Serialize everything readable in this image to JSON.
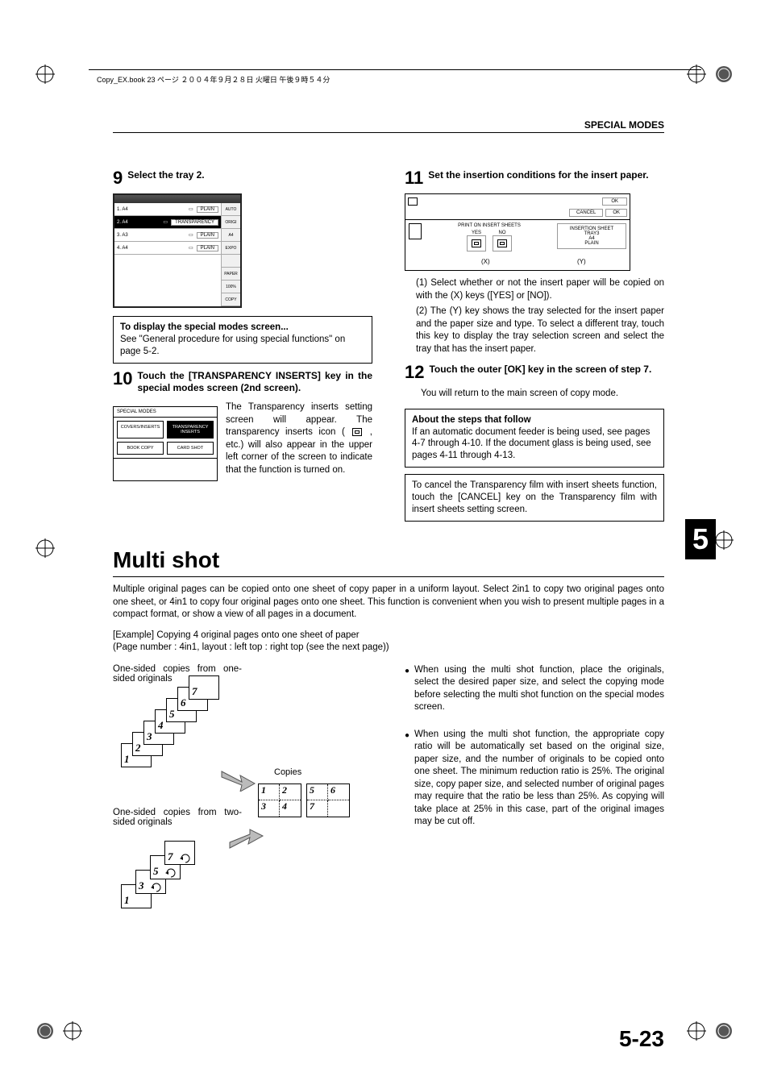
{
  "header": {
    "crop_text": "Copy_EX.book 23 ページ ２００４年９月２８日 火曜日 午後９時５４分",
    "section": "SPECIAL MODES"
  },
  "left": {
    "step9": {
      "num": "9",
      "text": "Select the tray 2."
    },
    "tray": {
      "rows": [
        {
          "n": "1.",
          "size": "A4",
          "type": "PLAIN",
          "sel": false
        },
        {
          "n": "2.",
          "size": "A4",
          "type": "TRANSPARENCY",
          "sel": true
        },
        {
          "n": "3.",
          "size": "A3",
          "type": "PLAIN",
          "sel": false
        },
        {
          "n": "4.",
          "size": "A4",
          "type": "PLAIN",
          "sel": false
        }
      ],
      "side": [
        "AUTO",
        "ORIGI",
        "A4",
        "EXPO",
        "",
        "PAPER",
        "100%",
        "COPY"
      ]
    },
    "note1": {
      "title": "To display the special modes screen...",
      "body": "See \"General procedure for using special functions\" on page 5-2."
    },
    "step10": {
      "num": "10",
      "text": "Touch the [TRANSPARENCY INSERTS] key in the special modes screen (2nd screen)."
    },
    "sm_box": {
      "header": "SPECIAL MODES",
      "btns": [
        "COVERS/INSERTS",
        "TRANSPARENCY INSERTS",
        "BOOK COPY",
        "CARD SHOT"
      ],
      "sel_idx": 1
    },
    "step10_body": "The Transparency inserts setting screen will appear. The transparency inserts icon ( 　 , etc.) will also appear in the upper left corner of the screen to indicate that the function is turned on."
  },
  "right": {
    "step11": {
      "num": "11",
      "text": "Set the insertion conditions for the insert paper."
    },
    "ins_screen": {
      "ok": "OK",
      "cancel": "CANCEL",
      "mid_title": "PRINT ON INSERT SHEETS",
      "yes": "YES",
      "no": "NO",
      "right_title": "INSERTION SHEET",
      "right_l1": "TRAY3",
      "right_l2": "A4",
      "right_l3": "PLAIN",
      "x": "(X)",
      "y": "(Y)"
    },
    "bullets11": [
      "Select whether or not the insert paper will be copied on with the (X) keys ([YES] or [NO]).",
      "The (Y) key shows the tray selected for the insert paper and the paper size and type. To select a different tray, touch this key to display the tray selection screen and select the tray that has the insert paper."
    ],
    "step12": {
      "num": "12",
      "text": "Touch the outer [OK] key in the screen of step 7."
    },
    "step12_body": "You will return to the main screen of copy mode.",
    "note2": {
      "title": "About the steps that follow",
      "body": "If an automatic document feeder is being used, see pages 4-7 through 4-10. If the document glass is being used, see pages 4-11 through 4-13."
    },
    "note3": "To cancel the Transparency film with insert sheets function, touch the [CANCEL] key on the Transparency film with insert sheets setting screen."
  },
  "tab": "5",
  "multishot": {
    "heading": "Multi shot",
    "intro": "Multiple original pages can be copied onto one sheet of copy paper in a uniform layout. Select 2in1 to copy two original pages onto one sheet, or 4in1 to copy four original pages onto one sheet. This function is convenient when you wish to present multiple pages in a compact format, or show a view of all pages in a document.",
    "example1": "[Example] Copying 4 original pages onto one sheet of paper",
    "example2": "(Page number : 4in1, layout :  left top : right top (see the next page))",
    "left_label1": "One-sided copies from one-sided originals",
    "left_label2": "One-sided copies from two-sided originals",
    "copies": "Copies",
    "stack1": [
      "1",
      "2",
      "3",
      "4",
      "5",
      "6",
      "7"
    ],
    "stack2": [
      "1",
      "3",
      "5",
      "7"
    ],
    "quad1": [
      "1",
      "2",
      "3",
      "4"
    ],
    "quad2": [
      "5",
      "6",
      "7",
      ""
    ],
    "bullets": [
      "When using the multi shot function, place the originals, select the desired paper size, and select the copying mode before selecting the multi shot function on the special modes screen.",
      "When using the multi shot function, the appropriate copy ratio will be automatically set based on the original size, paper size, and the number of originals to be copied onto one sheet. The minimum reduction ratio is 25%. The original size, copy paper size, and selected number of original pages may require that the ratio be less than 25%. As copying will take place at 25% in this case, part of the original images may be cut off."
    ]
  },
  "page_num": "5-23"
}
